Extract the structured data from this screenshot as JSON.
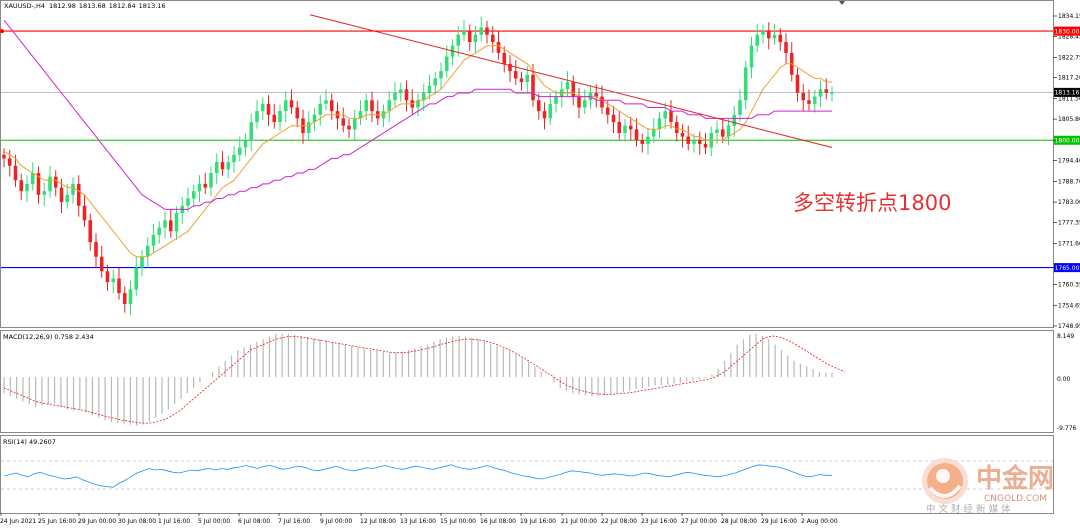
{
  "title": "XAUUSD-,H4",
  "ohlc": [
    "1812.98",
    "1813.68",
    "1812.84",
    "1813.16"
  ],
  "annotation": "多空转折点1800",
  "current_price": "1813.16",
  "price_axis": {
    "ticks": [
      "1834.15",
      "1828.45",
      "1822.75",
      "1817.20",
      "1811.50",
      "1805.80",
      "1800.00",
      "1794.40",
      "1788.70",
      "1783.00",
      "1777.35",
      "1771.60",
      "1765.00",
      "1760.35",
      "1754.65",
      "1748.95"
    ],
    "min": 1748.95,
    "max": 1834.15
  },
  "horizontal_levels": [
    {
      "name": "resistance",
      "value": 1830.0,
      "label": "1830.00",
      "color": "#ff0000"
    },
    {
      "name": "pivot",
      "value": 1800.0,
      "label": "1800.00",
      "color": "#00c000"
    },
    {
      "name": "support",
      "value": 1765.0,
      "label": "1765.00",
      "color": "#0000ff"
    }
  ],
  "time_axis": [
    "24 Jun 2021",
    "25 Jun 16:00",
    "29 Jun 00:00",
    "30 Jun 08:00",
    "1 Jul 16:00",
    "5 Jul 00:00",
    "6 Jul 08:00",
    "7 Jul 16:00",
    "9 Jul 00:00",
    "12 Jul 08:00",
    "13 Jul 16:00",
    "15 Jul 00:00",
    "16 Jul 08:00",
    "19 Jul 16:00",
    "21 Jul 00:00",
    "22 Jul 08:00",
    "23 Jul 16:00",
    "27 Jul 00:00",
    "28 Jul 08:00",
    "29 Jul 16:00",
    "2 Aug 00:00"
  ],
  "macd": {
    "label": "MACD(12,26,9) 0.758 2.434",
    "ticks": [
      "8.149",
      "0.00",
      "-9.776"
    ],
    "min": -9.776,
    "max": 8.149
  },
  "rsi": {
    "label": "RSI(14) 49.2607"
  },
  "watermark": {
    "brand": "中金网",
    "site": "CNGOLD.COM",
    "slogan": "中 文 财 经 新 媒 体"
  },
  "chart_data": {
    "type": "candlestick",
    "symbol": "XAUUSD",
    "timeframe": "H4",
    "ylim": [
      1748.95,
      1834.15
    ],
    "closes": [
      1795,
      1793,
      1789,
      1786,
      1788,
      1791,
      1785,
      1786,
      1790,
      1787,
      1783,
      1785,
      1788,
      1782,
      1778,
      1772,
      1768,
      1764,
      1761,
      1762,
      1758,
      1755,
      1759,
      1765,
      1768,
      1771,
      1774,
      1776,
      1778,
      1775,
      1780,
      1782,
      1784,
      1786,
      1788,
      1787,
      1791,
      1794,
      1792,
      1794,
      1796,
      1798,
      1800,
      1805,
      1808,
      1810,
      1807,
      1805,
      1808,
      1811,
      1809,
      1806,
      1802,
      1805,
      1807,
      1810,
      1811,
      1808,
      1806,
      1804,
      1803,
      1806,
      1808,
      1811,
      1808,
      1806,
      1808,
      1811,
      1813,
      1814,
      1811,
      1809,
      1811,
      1813,
      1815,
      1817,
      1819,
      1823,
      1826,
      1829,
      1830,
      1827,
      1829,
      1831,
      1829,
      1827,
      1824,
      1821,
      1819,
      1817,
      1816,
      1818,
      1811,
      1808,
      1806,
      1810,
      1812,
      1814,
      1816,
      1812,
      1809,
      1811,
      1813,
      1812,
      1809,
      1807,
      1805,
      1802,
      1804,
      1803,
      1800,
      1799,
      1801,
      1803,
      1806,
      1808,
      1805,
      1802,
      1801,
      1799,
      1800,
      1799,
      1798,
      1802,
      1803,
      1801,
      1804,
      1807,
      1811,
      1820,
      1826,
      1829,
      1830,
      1828,
      1829,
      1827,
      1824,
      1818,
      1813,
      1811,
      1810,
      1812,
      1814,
      1813,
      1813
    ],
    "ma_fast": [
      1797,
      1796,
      1795,
      1793,
      1792,
      1791,
      1790,
      1789,
      1789,
      1789,
      1788,
      1787,
      1787,
      1786,
      1785,
      1783,
      1781,
      1779,
      1777,
      1775,
      1773,
      1771,
      1769,
      1768,
      1768,
      1768,
      1769,
      1770,
      1771,
      1772,
      1773,
      1774,
      1775,
      1777,
      1779,
      1781,
      1783,
      1785,
      1787,
      1788,
      1789,
      1791,
      1793,
      1795,
      1797,
      1799,
      1800,
      1801,
      1802,
      1803,
      1804,
      1804,
      1804,
      1804,
      1805,
      1806,
      1807,
      1807,
      1807,
      1807,
      1806,
      1806,
      1806,
      1807,
      1807,
      1807,
      1807,
      1808,
      1809,
      1810,
      1810,
      1810,
      1811,
      1811,
      1812,
      1813,
      1814,
      1816,
      1818,
      1820,
      1822,
      1823,
      1824,
      1825,
      1826,
      1826,
      1826,
      1825,
      1824,
      1823,
      1822,
      1821,
      1819,
      1817,
      1815,
      1814,
      1813,
      1813,
      1813,
      1813,
      1812,
      1812,
      1812,
      1812,
      1811,
      1810,
      1809,
      1808,
      1807,
      1806,
      1805,
      1804,
      1803,
      1803,
      1803,
      1804,
      1804,
      1803,
      1803,
      1802,
      1801,
      1801,
      1800,
      1800,
      1800,
      1800,
      1801,
      1802,
      1803,
      1805,
      1808,
      1811,
      1814,
      1816,
      1818,
      1820,
      1821,
      1821,
      1820,
      1819,
      1818,
      1817,
      1817,
      1816,
      1816
    ],
    "ma_slow": [
      1833,
      1831,
      1829,
      1827,
      1825,
      1823,
      1821,
      1819,
      1817,
      1815,
      1813,
      1811,
      1809,
      1807,
      1805,
      1803,
      1801,
      1799,
      1797,
      1795,
      1793,
      1791,
      1789,
      1787,
      1785,
      1784,
      1783,
      1782,
      1781,
      1781,
      1781,
      1781,
      1781,
      1782,
      1782,
      1783,
      1783,
      1784,
      1784,
      1785,
      1785,
      1786,
      1786,
      1787,
      1787,
      1788,
      1788,
      1789,
      1789,
      1790,
      1790,
      1791,
      1791,
      1792,
      1792,
      1793,
      1794,
      1795,
      1795,
      1796,
      1796,
      1797,
      1798,
      1799,
      1800,
      1801,
      1802,
      1803,
      1804,
      1805,
      1806,
      1807,
      1808,
      1809,
      1810,
      1810,
      1811,
      1812,
      1812,
      1813,
      1813,
      1813,
      1814,
      1814,
      1814,
      1814,
      1814,
      1814,
      1814,
      1813,
      1813,
      1813,
      1813,
      1812,
      1812,
      1812,
      1812,
      1812,
      1812,
      1812,
      1812,
      1812,
      1812,
      1811,
      1811,
      1811,
      1811,
      1811,
      1810,
      1810,
      1810,
      1810,
      1809,
      1809,
      1809,
      1809,
      1808,
      1808,
      1808,
      1807,
      1807,
      1807,
      1806,
      1806,
      1806,
      1806,
      1806,
      1806,
      1806,
      1806,
      1806,
      1807,
      1807,
      1807,
      1808,
      1808,
      1808,
      1808,
      1808,
      1808,
      1808,
      1808,
      1808,
      1808,
      1808
    ],
    "trendline": {
      "from": 1834.5,
      "to": 1798.0
    },
    "macd_hist": [
      -3,
      -3.5,
      -4,
      -4.5,
      -5,
      -5.5,
      -5.2,
      -5,
      -4.8,
      -5.5,
      -6,
      -6.2,
      -6,
      -6.5,
      -7,
      -7.5,
      -8,
      -8.3,
      -8.5,
      -8.6,
      -8.8,
      -9,
      -8.8,
      -8.2,
      -7.5,
      -6.8,
      -6,
      -5,
      -4,
      -3,
      -2,
      -1,
      0,
      1,
      2,
      3,
      4,
      5,
      5.5,
      6,
      6.5,
      7,
      7.5,
      8,
      8.1,
      8,
      7.8,
      7.6,
      7.4,
      7.2,
      7,
      6.8,
      6.5,
      6.2,
      6,
      5.8,
      5.5,
      5.3,
      5,
      4.8,
      4.6,
      4.5,
      4.5,
      4.7,
      5,
      5.3,
      5.7,
      6,
      6.5,
      7,
      7.3,
      7.5,
      7.6,
      7.5,
      7.3,
      7,
      6.6,
      6.2,
      5.8,
      5.3,
      4.8,
      4.2,
      3.5,
      2.8,
      2,
      1,
      0,
      -1,
      -2,
      -2.5,
      -3,
      -3.2,
      -3.4,
      -3.5,
      -3.5,
      -3.4,
      -3.2,
      -3,
      -2.8,
      -2.5,
      -2.2,
      -2,
      -1.8,
      -1.6,
      -1.5,
      -1.4,
      -1.2,
      -1,
      -0.8,
      -0.6,
      -0.4,
      -0.2,
      0.5,
      1.5,
      3,
      4.5,
      6,
      7,
      7.8,
      8,
      7.6,
      7,
      6,
      5,
      4,
      3,
      2.5,
      2,
      1.5,
      1,
      0.8,
      0.8
    ],
    "macd_signal": [
      -2,
      -2.5,
      -3,
      -3.5,
      -4,
      -4.5,
      -4.8,
      -5,
      -5.2,
      -5.4,
      -5.6,
      -5.8,
      -6,
      -6.3,
      -6.6,
      -6.9,
      -7.2,
      -7.5,
      -7.8,
      -8,
      -8.2,
      -8.4,
      -8.5,
      -8.5,
      -8.3,
      -8,
      -7.5,
      -6.8,
      -6,
      -5,
      -4,
      -3,
      -2,
      -1,
      0,
      1,
      2,
      3,
      4,
      5,
      5.5,
      6,
      6.5,
      7,
      7.3,
      7.5,
      7.5,
      7.4,
      7.2,
      7,
      6.8,
      6.6,
      6.4,
      6.2,
      6,
      5.8,
      5.6,
      5.4,
      5.2,
      5,
      4.8,
      4.6,
      4.5,
      4.5,
      4.6,
      4.8,
      5,
      5.3,
      5.6,
      6,
      6.3,
      6.6,
      6.8,
      7,
      7,
      6.9,
      6.7,
      6.4,
      6,
      5.5,
      5,
      4.4,
      3.7,
      3,
      2.3,
      1.5,
      0.7,
      0,
      -0.8,
      -1.5,
      -2,
      -2.4,
      -2.7,
      -3,
      -3.1,
      -3.2,
      -3.2,
      -3.1,
      -3,
      -2.9,
      -2.7,
      -2.5,
      -2.3,
      -2.1,
      -1.9,
      -1.7,
      -1.5,
      -1.3,
      -1.1,
      -0.9,
      -0.7,
      -0.5,
      -0.2,
      0.3,
      1,
      2,
      3,
      4,
      5,
      6,
      7,
      7.5,
      7.6,
      7.3,
      6.8,
      6.2,
      5.5,
      4.8,
      4,
      3.3,
      2.6,
      2,
      1.5,
      1
    ],
    "rsi": [
      48,
      50,
      52,
      49,
      47,
      51,
      53,
      50,
      48,
      46,
      44,
      45,
      47,
      43,
      40,
      37,
      35,
      34,
      33,
      38,
      42,
      47,
      52,
      55,
      58,
      56,
      57,
      55,
      53,
      52,
      54,
      56,
      55,
      57,
      58,
      56,
      58,
      57,
      59,
      60,
      62,
      60,
      58,
      61,
      62,
      60,
      57,
      58,
      60,
      61,
      59,
      56,
      55,
      57,
      59,
      61,
      58,
      56,
      55,
      57,
      59,
      58,
      60,
      62,
      60,
      58,
      57,
      59,
      61,
      60,
      58,
      57,
      59,
      61,
      63,
      60,
      58,
      57,
      58,
      60,
      62,
      59,
      57,
      55,
      52,
      50,
      48,
      47,
      45,
      44,
      46,
      48,
      50,
      53,
      55,
      54,
      53,
      52,
      50,
      49,
      50,
      51,
      50,
      49,
      48,
      50,
      52,
      51,
      49,
      48,
      47,
      49,
      51,
      53,
      52,
      50,
      49,
      48,
      47,
      48,
      50,
      52,
      55,
      58,
      61,
      63,
      62,
      61,
      60,
      58,
      55,
      52,
      49,
      47,
      48,
      50,
      49,
      49
    ]
  }
}
